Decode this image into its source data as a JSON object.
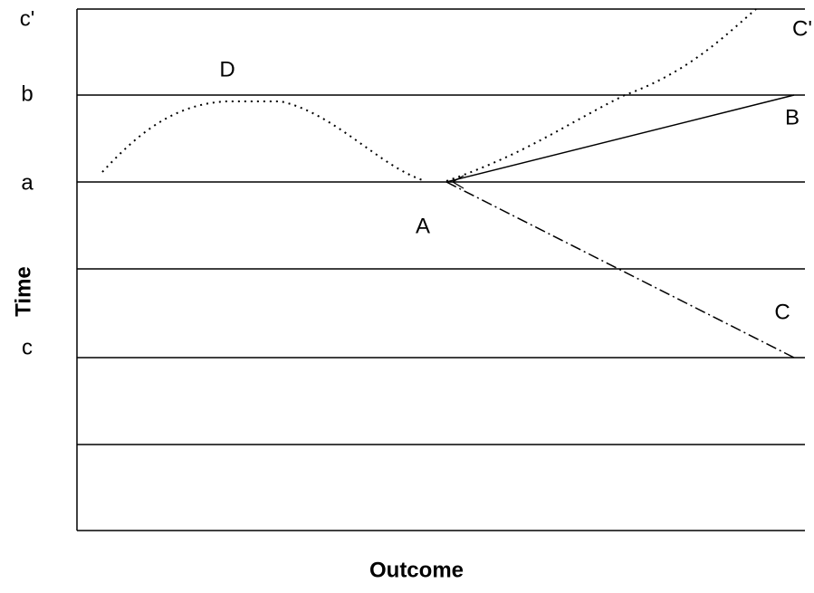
{
  "axes": {
    "y_label": "Time",
    "x_label": "Outcome"
  },
  "level_labels": [
    "c'",
    "b",
    "a",
    "c"
  ],
  "curve_labels": [
    "D",
    "A",
    "B",
    "C",
    "C'"
  ]
}
